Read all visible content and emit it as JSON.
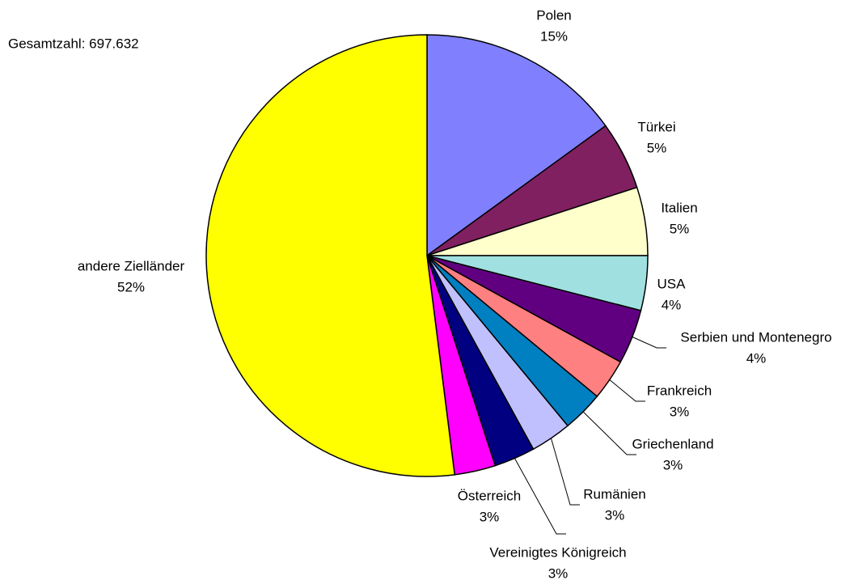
{
  "chart_data": {
    "type": "pie",
    "annotation": "Gesamtzahl: 697.632",
    "categories": [
      "Polen",
      "Türkei",
      "Italien",
      "USA",
      "Serbien und Montenegro",
      "Frankreich",
      "Griechenland",
      "Rumänien",
      "Vereinigtes Königreich",
      "Österreich",
      "andere Zielländer"
    ],
    "values": [
      15,
      5,
      5,
      4,
      4,
      3,
      3,
      3,
      3,
      3,
      52
    ],
    "value_labels": [
      "15%",
      "5%",
      "5%",
      "4%",
      "4%",
      "3%",
      "3%",
      "3%",
      "3%",
      "3%",
      "52%"
    ],
    "colors": [
      "#8080ff",
      "#802060",
      "#ffffcc",
      "#a0e0e0",
      "#600080",
      "#ff8080",
      "#0080c0",
      "#c0c0ff",
      "#000080",
      "#ff00ff",
      "#ffff00"
    ]
  }
}
